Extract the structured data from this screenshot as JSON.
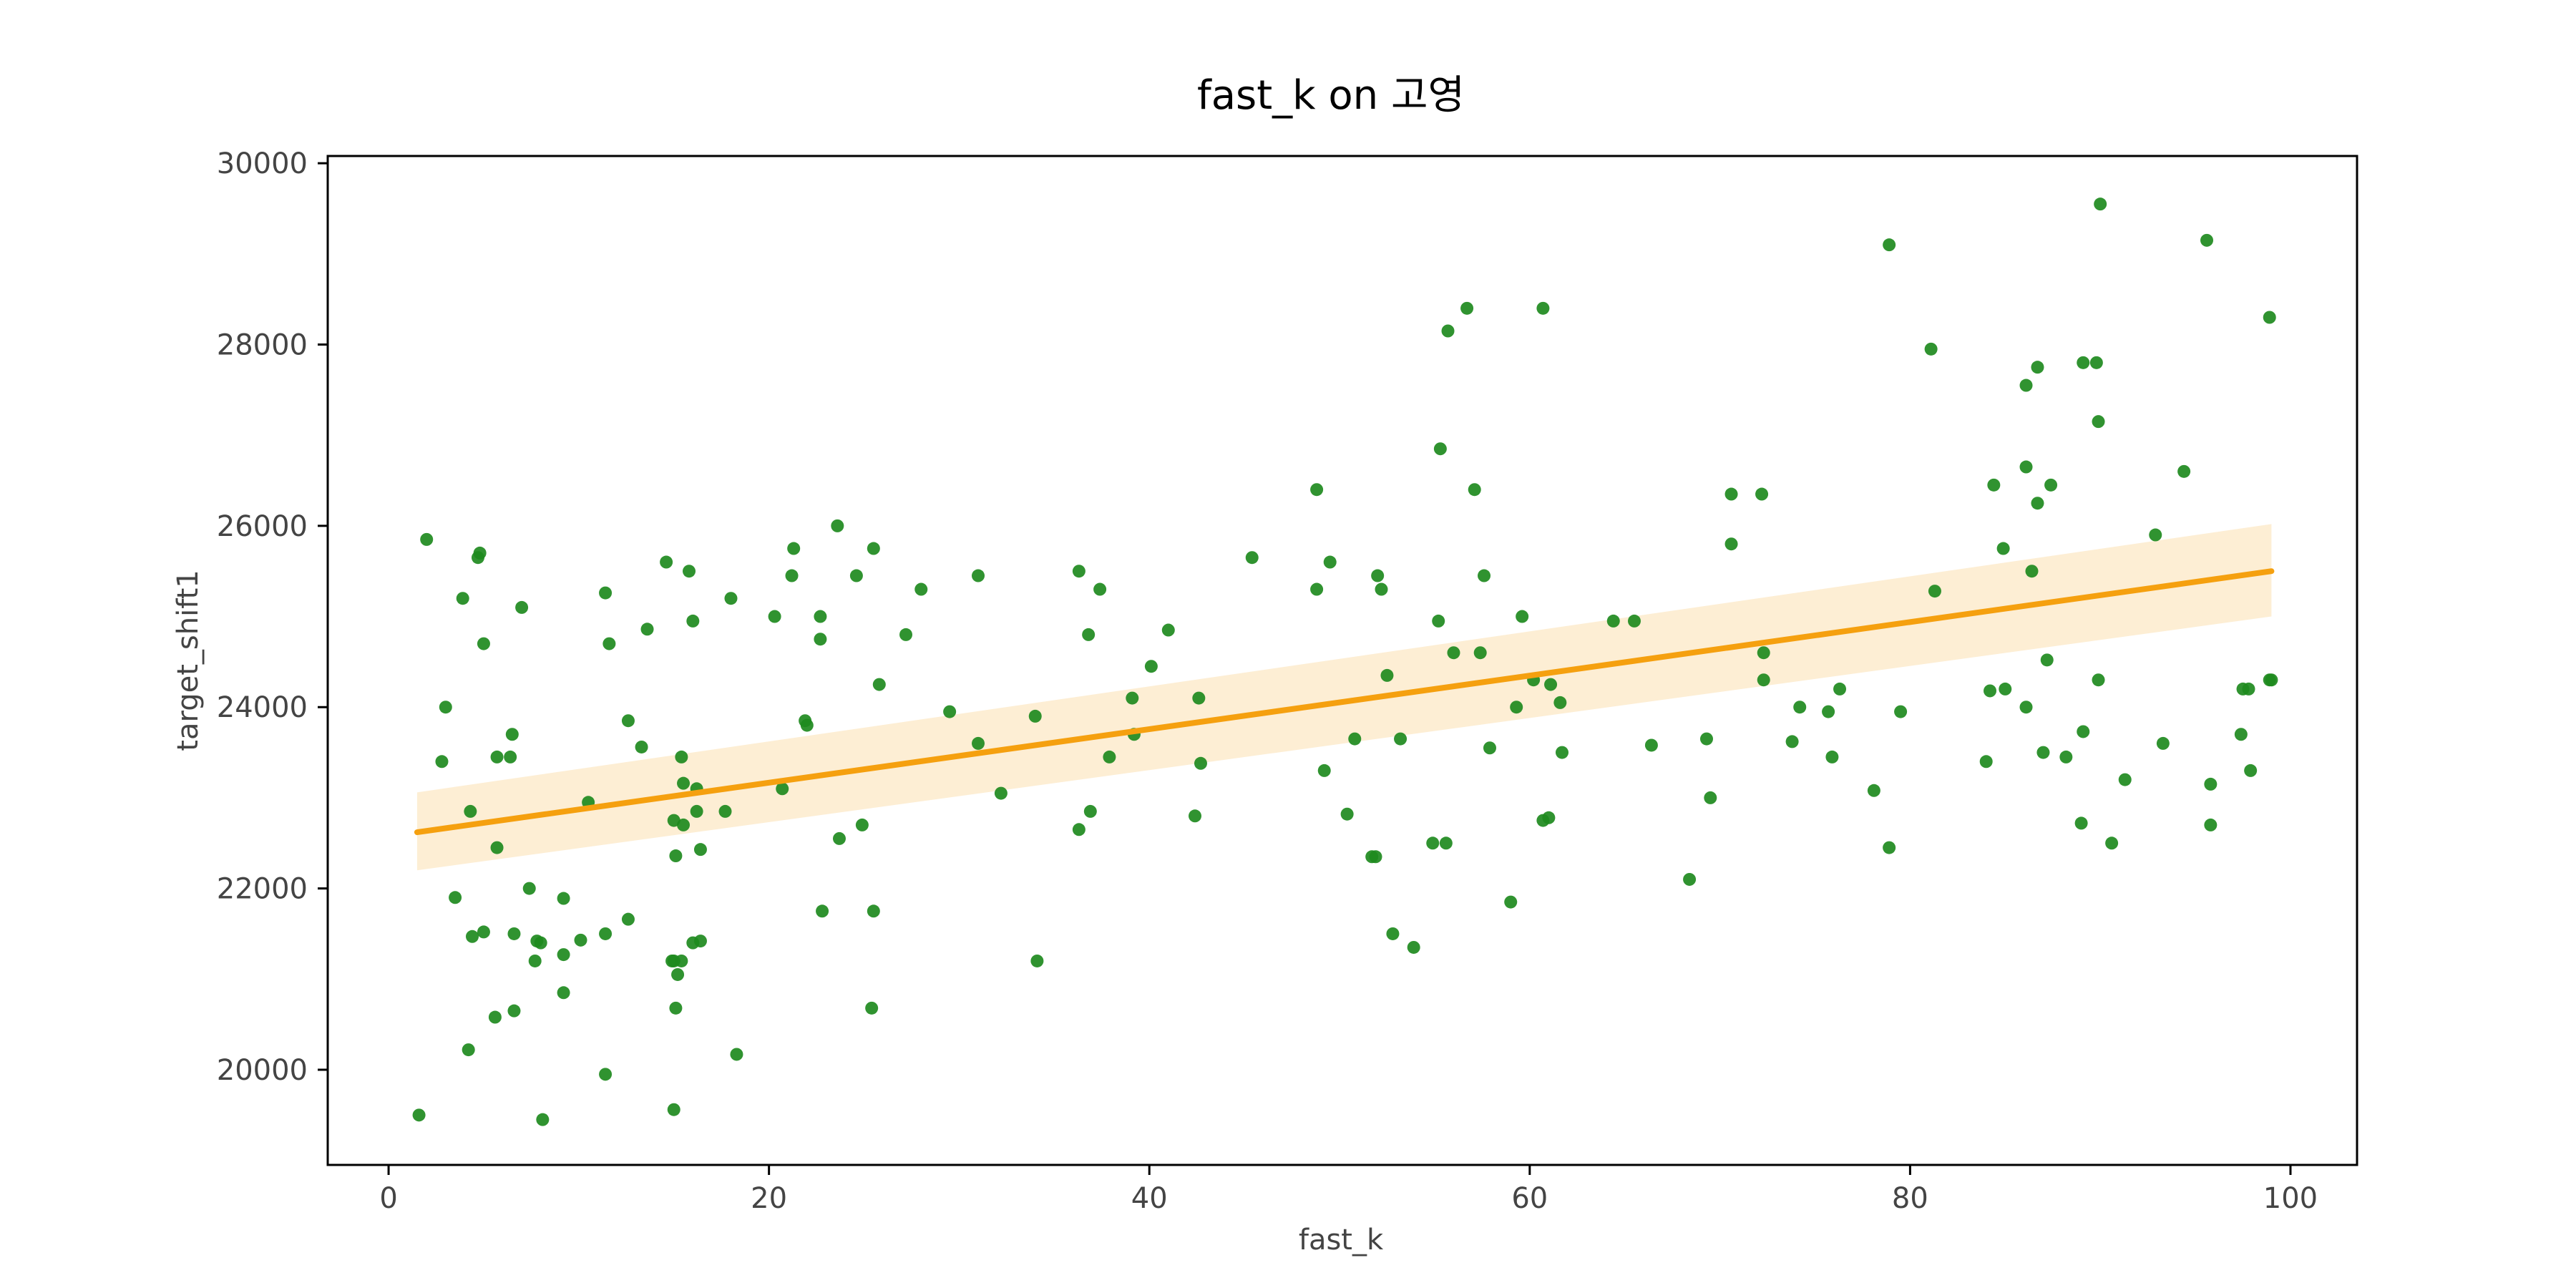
{
  "chart_data": {
    "type": "scatter",
    "title": "fast_k on 고영",
    "xlabel": "fast_k",
    "ylabel": "target_shift1",
    "xlim": [
      -3.2,
      103.5
    ],
    "ylim": [
      18950,
      30080
    ],
    "x_ticks": [
      0,
      20,
      40,
      60,
      80,
      100
    ],
    "y_ticks": [
      20000,
      22000,
      24000,
      26000,
      28000,
      30000
    ],
    "x_tick_labels": [
      "0",
      "20",
      "40",
      "60",
      "80",
      "100"
    ],
    "y_tick_labels": [
      "20000",
      "22000",
      "24000",
      "26000",
      "28000",
      "30000"
    ],
    "grid": false,
    "legend": "none",
    "colors": {
      "points": "#1e8a1e",
      "fit_line": "#f5a00f",
      "confidence_band": "#fdebcc"
    },
    "regression": {
      "x_range": [
        1.5,
        99
      ],
      "y_start": 22620,
      "y_end": 25500,
      "ci_at_start": [
        22200,
        23060
      ],
      "ci_at_end": [
        25000,
        26020
      ]
    },
    "series": [
      {
        "points": [
          [
            1.6,
            19500
          ],
          [
            2,
            25850
          ],
          [
            2.8,
            23400
          ],
          [
            3,
            24000
          ],
          [
            3.5,
            21900
          ],
          [
            3.9,
            25200
          ],
          [
            4.2,
            20220
          ],
          [
            4.3,
            22850
          ],
          [
            4.4,
            21470
          ],
          [
            4.7,
            25650
          ],
          [
            4.8,
            25700
          ],
          [
            5,
            24700
          ],
          [
            5,
            21520
          ],
          [
            5.6,
            20580
          ],
          [
            5.7,
            23450
          ],
          [
            5.7,
            22450
          ],
          [
            6.4,
            23450
          ],
          [
            6.5,
            23700
          ],
          [
            6.6,
            20650
          ],
          [
            6.6,
            21500
          ],
          [
            7,
            25100
          ],
          [
            7.4,
            22000
          ],
          [
            7.7,
            21200
          ],
          [
            7.8,
            21420
          ],
          [
            8,
            21400
          ],
          [
            8.1,
            19450
          ],
          [
            9.2,
            20850
          ],
          [
            9.2,
            21890
          ],
          [
            9.2,
            21270
          ],
          [
            10.1,
            21430
          ],
          [
            10.5,
            22950
          ],
          [
            11.4,
            25260
          ],
          [
            11.4,
            21500
          ],
          [
            11.4,
            19950
          ],
          [
            11.6,
            24700
          ],
          [
            12.6,
            23850
          ],
          [
            12.6,
            21660
          ],
          [
            13.3,
            23560
          ],
          [
            13.6,
            24860
          ],
          [
            14.6,
            25600
          ],
          [
            14.9,
            21200
          ],
          [
            15,
            21200
          ],
          [
            15.1,
            20680
          ],
          [
            15,
            22750
          ],
          [
            15,
            19560
          ],
          [
            15.1,
            22360
          ],
          [
            15.2,
            21050
          ],
          [
            15.4,
            21200
          ],
          [
            15.4,
            23450
          ],
          [
            15.5,
            23160
          ],
          [
            15.5,
            22700
          ],
          [
            15.8,
            25500
          ],
          [
            16,
            24950
          ],
          [
            16,
            21400
          ],
          [
            16.2,
            23100
          ],
          [
            16.2,
            22850
          ],
          [
            16.4,
            21420
          ],
          [
            16.4,
            22430
          ],
          [
            17.7,
            22850
          ],
          [
            18,
            25200
          ],
          [
            18.3,
            20170
          ],
          [
            20.3,
            25000
          ],
          [
            20.7,
            23100
          ],
          [
            21.2,
            25450
          ],
          [
            21.3,
            25750
          ],
          [
            21.9,
            23850
          ],
          [
            22,
            23800
          ],
          [
            22.7,
            24750
          ],
          [
            22.7,
            25000
          ],
          [
            22.8,
            21750
          ],
          [
            23.6,
            26000
          ],
          [
            23.7,
            22550
          ],
          [
            24.6,
            25450
          ],
          [
            24.9,
            22700
          ],
          [
            25.5,
            25750
          ],
          [
            25.5,
            21750
          ],
          [
            25.4,
            20680
          ],
          [
            25.8,
            24250
          ],
          [
            27.2,
            24800
          ],
          [
            28,
            25300
          ],
          [
            29.5,
            23950
          ],
          [
            31,
            25450
          ],
          [
            31,
            23600
          ],
          [
            32.2,
            23050
          ],
          [
            34,
            23900
          ],
          [
            34.1,
            21200
          ],
          [
            36.3,
            25500
          ],
          [
            36.3,
            22650
          ],
          [
            36.8,
            24800
          ],
          [
            36.9,
            22850
          ],
          [
            37.4,
            25300
          ],
          [
            37.9,
            23450
          ],
          [
            39.1,
            24100
          ],
          [
            39.2,
            23700
          ],
          [
            40.1,
            24450
          ],
          [
            41,
            24850
          ],
          [
            42.4,
            22800
          ],
          [
            42.6,
            24100
          ],
          [
            42.7,
            23380
          ],
          [
            45.4,
            25650
          ],
          [
            48.8,
            26400
          ],
          [
            48.8,
            25300
          ],
          [
            49.2,
            23300
          ],
          [
            49.5,
            25600
          ],
          [
            50.4,
            22820
          ],
          [
            50.8,
            23650
          ],
          [
            51.7,
            22350
          ],
          [
            51.9,
            22350
          ],
          [
            52,
            25450
          ],
          [
            52.2,
            25300
          ],
          [
            52.5,
            24350
          ],
          [
            52.8,
            21500
          ],
          [
            53.2,
            23650
          ],
          [
            53.9,
            21350
          ],
          [
            54.9,
            22500
          ],
          [
            55.2,
            24950
          ],
          [
            55.3,
            26850
          ],
          [
            55.6,
            22500
          ],
          [
            55.7,
            28150
          ],
          [
            56,
            24600
          ],
          [
            56.7,
            28400
          ],
          [
            57.1,
            26400
          ],
          [
            57.4,
            24600
          ],
          [
            57.6,
            25450
          ],
          [
            57.9,
            23550
          ],
          [
            59,
            21850
          ],
          [
            59.3,
            24000
          ],
          [
            59.6,
            25000
          ],
          [
            60.2,
            24300
          ],
          [
            60.7,
            28400
          ],
          [
            60.7,
            22750
          ],
          [
            61,
            22780
          ],
          [
            61.1,
            24250
          ],
          [
            61.6,
            24050
          ],
          [
            61.7,
            23500
          ],
          [
            64.4,
            24950
          ],
          [
            65.5,
            24950
          ],
          [
            66.4,
            23580
          ],
          [
            68.4,
            22100
          ],
          [
            69.3,
            23650
          ],
          [
            69.5,
            23000
          ],
          [
            70.6,
            26350
          ],
          [
            70.6,
            25800
          ],
          [
            72.2,
            26350
          ],
          [
            72.3,
            24600
          ],
          [
            72.3,
            24300
          ],
          [
            73.8,
            23620
          ],
          [
            74.2,
            24000
          ],
          [
            75.7,
            23950
          ],
          [
            75.9,
            23450
          ],
          [
            76.3,
            24200
          ],
          [
            78.1,
            23080
          ],
          [
            78.9,
            29100
          ],
          [
            78.9,
            22450
          ],
          [
            79.5,
            23950
          ],
          [
            81.1,
            27950
          ],
          [
            81.3,
            25280
          ],
          [
            84,
            23400
          ],
          [
            84.2,
            24180
          ],
          [
            84.4,
            26450
          ],
          [
            84.9,
            25750
          ],
          [
            85,
            24200
          ],
          [
            86.1,
            27550
          ],
          [
            86.1,
            24000
          ],
          [
            86.1,
            26650
          ],
          [
            86.4,
            25500
          ],
          [
            86.7,
            27750
          ],
          [
            86.7,
            26250
          ],
          [
            87,
            23500
          ],
          [
            87.2,
            24520
          ],
          [
            87.4,
            26450
          ],
          [
            88.2,
            23450
          ],
          [
            89,
            22720
          ],
          [
            89.1,
            27800
          ],
          [
            89.1,
            23730
          ],
          [
            89.8,
            27800
          ],
          [
            89.9,
            27150
          ],
          [
            89.9,
            24300
          ],
          [
            90,
            29550
          ],
          [
            90.6,
            22500
          ],
          [
            91.3,
            23200
          ],
          [
            92.9,
            25900
          ],
          [
            93.3,
            23600
          ],
          [
            94.4,
            26600
          ],
          [
            95.6,
            29150
          ],
          [
            95.8,
            23150
          ],
          [
            95.8,
            22700
          ],
          [
            97.4,
            23700
          ],
          [
            97.5,
            24200
          ],
          [
            97.8,
            24200
          ],
          [
            97.9,
            23300
          ],
          [
            98.9,
            28300
          ],
          [
            98.9,
            24300
          ],
          [
            99,
            24300
          ]
        ]
      }
    ]
  }
}
